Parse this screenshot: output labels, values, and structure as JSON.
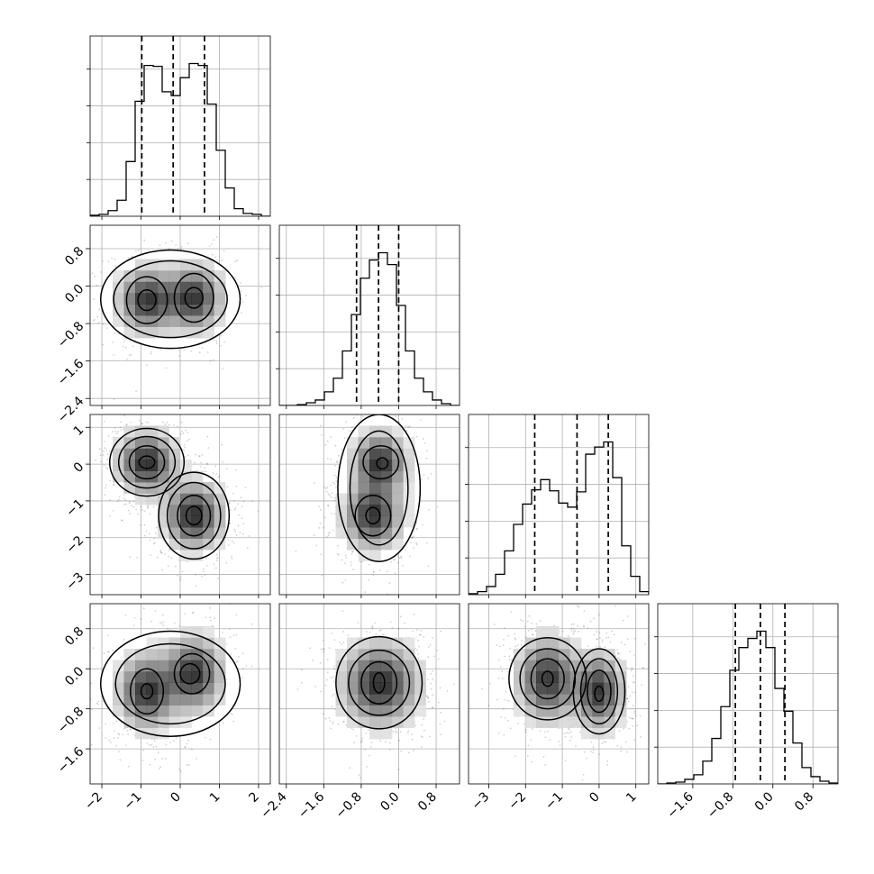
{
  "chart_data": {
    "type": "corner",
    "ndim": 4,
    "tick_labels": {
      "x": [
        [
          "−2",
          "−1",
          "0",
          "1",
          "2"
        ],
        [
          "−2.4",
          "−1.6",
          "−0.8",
          "0.0",
          "0.8"
        ],
        [
          "−3",
          "−2",
          "−1",
          "0",
          "1"
        ],
        [
          "−1.6",
          "−0.8",
          "0.0",
          "0.8"
        ]
      ],
      "y": [
        [],
        [
          "−2.4",
          "−1.6",
          "−0.8",
          "0.0",
          "0.8"
        ],
        [
          "−3",
          "−2",
          "−1",
          "0",
          "1"
        ],
        [
          "−1.6",
          "−0.8",
          "0.0",
          "0.8"
        ]
      ]
    },
    "params": [
      {
        "range": [
          -2.3,
          2.3
        ],
        "ticks": [
          -2,
          -1,
          0,
          1,
          2
        ],
        "quantiles": [
          -0.98,
          -0.18,
          0.62
        ],
        "hist_edges": [
          -2.3,
          -2.07,
          -1.84,
          -1.61,
          -1.38,
          -1.15,
          -0.92,
          -0.69,
          -0.46,
          -0.23,
          0.0,
          0.23,
          0.46,
          0.69,
          0.92,
          1.15,
          1.38,
          1.61,
          1.84,
          2.07,
          2.3
        ],
        "hist_counts": [
          1,
          2,
          6,
          17,
          58,
          122,
          160,
          159,
          132,
          128,
          147,
          162,
          160,
          119,
          70,
          30,
          8,
          3,
          2,
          0
        ]
      },
      {
        "range": [
          -2.55,
          1.3
        ],
        "ticks": [
          -2.4,
          -1.6,
          -0.8,
          0.0,
          0.8
        ],
        "quantiles": [
          -0.9,
          -0.43,
          0.0
        ],
        "hist_edges": [
          -2.55,
          -2.357,
          -2.165,
          -1.972,
          -1.78,
          -1.588,
          -1.395,
          -1.202,
          -1.01,
          -0.818,
          -0.625,
          -0.432,
          -0.24,
          -0.047,
          0.145,
          0.338,
          0.53,
          0.722,
          0.915,
          1.108,
          1.3
        ],
        "hist_counts": [
          0,
          0,
          1,
          3,
          6,
          15,
          30,
          60,
          100,
          140,
          160,
          168,
          155,
          110,
          60,
          30,
          15,
          6,
          2,
          0
        ]
      },
      {
        "range": [
          -3.55,
          1.35
        ],
        "ticks": [
          -3,
          -2,
          -1,
          0,
          1
        ],
        "quantiles": [
          -1.75,
          -0.6,
          0.25
        ],
        "hist_edges": [
          -3.55,
          -3.305,
          -3.06,
          -2.815,
          -2.57,
          -2.325,
          -2.08,
          -1.835,
          -1.59,
          -1.345,
          -1.1,
          -0.855,
          -0.61,
          -0.365,
          -0.12,
          0.125,
          0.37,
          0.615,
          0.86,
          1.105,
          1.35
        ],
        "hist_counts": [
          1,
          3,
          8,
          20,
          43,
          69,
          89,
          103,
          113,
          102,
          90,
          86,
          101,
          138,
          145,
          150,
          115,
          48,
          18,
          3
        ]
      },
      {
        "range": [
          -2.3,
          1.3
        ],
        "ticks": [
          -1.6,
          -0.8,
          0.0,
          0.8
        ],
        "quantiles": [
          -0.75,
          -0.25,
          0.24
        ],
        "hist_edges": [
          -2.3,
          -2.12,
          -1.94,
          -1.76,
          -1.58,
          -1.4,
          -1.22,
          -1.04,
          -0.86,
          -0.68,
          -0.5,
          -0.32,
          -0.14,
          0.04,
          0.22,
          0.4,
          0.58,
          0.76,
          0.94,
          1.12,
          1.3
        ],
        "hist_counts": [
          0,
          1,
          2,
          5,
          10,
          25,
          50,
          85,
          125,
          150,
          160,
          168,
          150,
          105,
          80,
          45,
          18,
          8,
          3,
          1
        ]
      }
    ],
    "density_2d": [
      {
        "x": 0,
        "y": 1,
        "modes": [
          [
            -0.85,
            -0.3,
            0.45,
            0.42
          ],
          [
            0.35,
            -0.25,
            0.45,
            0.42
          ]
        ],
        "contours": [
          [
            [
              -0.85,
              -0.3,
              0.23,
              0.22
            ],
            [
              0.35,
              -0.25,
              0.23,
              0.22
            ]
          ],
          [
            [
              -0.85,
              -0.3,
              0.52,
              0.5
            ],
            [
              0.35,
              -0.25,
              0.5,
              0.52
            ]
          ],
          [
            [
              -0.25,
              -0.28,
              1.45,
              0.82
            ]
          ],
          [
            [
              -0.25,
              -0.28,
              1.78,
              1.05
            ]
          ]
        ]
      },
      {
        "x": 0,
        "y": 2,
        "modes": [
          [
            -0.85,
            0.05,
            0.45,
            0.5
          ],
          [
            0.35,
            -1.4,
            0.45,
            0.55
          ]
        ],
        "contours": [
          [
            [
              -0.85,
              0.05,
              0.2,
              0.17
            ],
            [
              0.35,
              -1.4,
              0.2,
              0.25
            ]
          ],
          [
            [
              -0.85,
              0.05,
              0.45,
              0.45
            ],
            [
              0.35,
              -1.4,
              0.42,
              0.55
            ]
          ],
          [
            [
              -0.85,
              0.05,
              0.72,
              0.7
            ],
            [
              0.35,
              -1.4,
              0.68,
              0.9
            ]
          ],
          [
            [
              -0.85,
              0.05,
              0.95,
              0.92
            ],
            [
              0.35,
              -1.4,
              0.9,
              1.18
            ]
          ]
        ]
      },
      {
        "x": 1,
        "y": 2,
        "modes": [
          [
            -0.4,
            0.05,
            0.35,
            0.5
          ],
          [
            -0.55,
            -1.4,
            0.38,
            0.55
          ]
        ],
        "contours": [
          [
            [
              -0.35,
              0.02,
              0.12,
              0.15
            ],
            [
              -0.55,
              -1.4,
              0.15,
              0.22
            ]
          ],
          [
            [
              -0.38,
              0.05,
              0.38,
              0.45
            ],
            [
              -0.55,
              -1.4,
              0.38,
              0.55
            ]
          ],
          [
            [
              -0.42,
              -0.65,
              0.62,
              1.55
            ]
          ],
          [
            [
              -0.42,
              -0.65,
              0.88,
              2.0
            ]
          ]
        ]
      },
      {
        "x": 0,
        "y": 3,
        "modes": [
          [
            -0.85,
            -0.45,
            0.45,
            0.45
          ],
          [
            0.35,
            -0.1,
            0.45,
            0.45
          ]
        ],
        "contours": [
          [
            [
              -0.85,
              -0.45,
              0.15,
              0.15
            ],
            [
              0.25,
              -0.1,
              0.25,
              0.2
            ]
          ],
          [
            [
              -0.85,
              -0.45,
              0.42,
              0.45
            ],
            [
              0.3,
              -0.1,
              0.45,
              0.4
            ]
          ],
          [
            [
              -0.25,
              -0.3,
              1.4,
              0.8
            ]
          ],
          [
            [
              -0.25,
              -0.3,
              1.78,
              1.05
            ]
          ]
        ]
      },
      {
        "x": 1,
        "y": 3,
        "modes": [
          [
            -0.4,
            -0.3,
            0.5,
            0.5
          ]
        ],
        "contours": [
          [
            [
              -0.42,
              -0.28,
              0.12,
              0.2
            ]
          ],
          [
            [
              -0.42,
              -0.28,
              0.38,
              0.42
            ]
          ],
          [
            [
              -0.42,
              -0.28,
              0.65,
              0.65
            ]
          ],
          [
            [
              -0.42,
              -0.28,
              0.92,
              0.92
            ]
          ]
        ]
      },
      {
        "x": 2,
        "y": 3,
        "modes": [
          [
            -1.4,
            -0.2,
            0.5,
            0.5
          ],
          [
            0.0,
            -0.45,
            0.4,
            0.45
          ]
        ],
        "contours": [
          [
            [
              -1.4,
              -0.2,
              0.15,
              0.15
            ],
            [
              0.0,
              -0.5,
              0.12,
              0.15
            ]
          ],
          [
            [
              -1.4,
              -0.2,
              0.45,
              0.4
            ],
            [
              0.0,
              -0.45,
              0.32,
              0.42
            ]
          ],
          [
            [
              -1.4,
              -0.2,
              0.75,
              0.6
            ],
            [
              0.0,
              -0.45,
              0.5,
              0.65
            ]
          ],
          [
            [
              -1.4,
              -0.2,
              1.05,
              0.82
            ],
            [
              0.0,
              -0.45,
              0.7,
              0.85
            ]
          ]
        ]
      }
    ],
    "grid": true
  }
}
